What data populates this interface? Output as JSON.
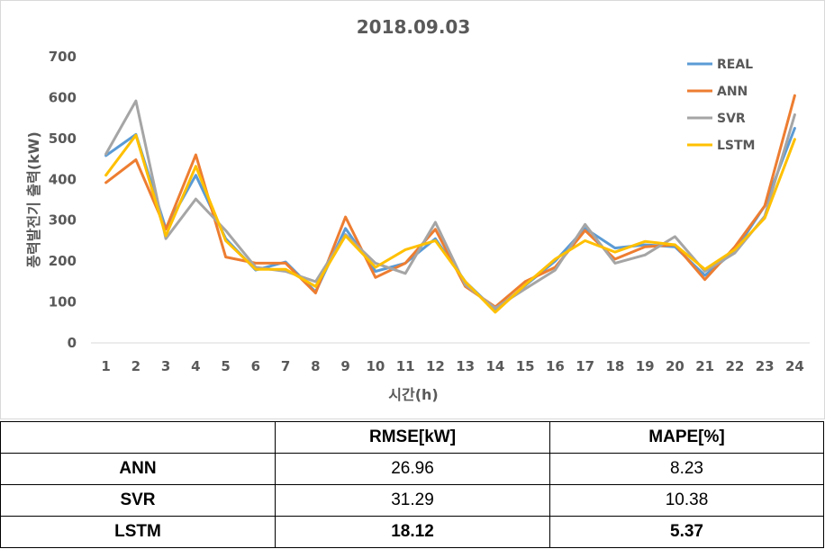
{
  "chart_data": {
    "type": "line",
    "title": "2018.09.03",
    "xlabel": "시간(h)",
    "ylabel": "풍력발전기 출력(kW)",
    "categories": [
      "1",
      "2",
      "3",
      "4",
      "5",
      "6",
      "7",
      "8",
      "9",
      "10",
      "11",
      "12",
      "13",
      "14",
      "15",
      "16",
      "17",
      "18",
      "19",
      "20",
      "21",
      "22",
      "23",
      "24"
    ],
    "ylim": [
      0,
      700
    ],
    "yticks": [
      0,
      100,
      200,
      300,
      400,
      500,
      600,
      700
    ],
    "grid": false,
    "legend": "top-right",
    "series": [
      {
        "name": "REAL",
        "color": "#5b9bd5",
        "values": [
          458,
          510,
          280,
          410,
          255,
          178,
          198,
          125,
          280,
          175,
          195,
          255,
          150,
          80,
          140,
          200,
          280,
          232,
          240,
          235,
          165,
          225,
          335,
          525
        ]
      },
      {
        "name": "ANN",
        "color": "#ed7d31",
        "values": [
          392,
          448,
          278,
          460,
          210,
          195,
          195,
          122,
          308,
          160,
          195,
          278,
          138,
          88,
          150,
          185,
          275,
          205,
          235,
          240,
          155,
          235,
          335,
          605
        ]
      },
      {
        "name": "SVR",
        "color": "#a5a5a5",
        "values": [
          462,
          592,
          255,
          352,
          275,
          185,
          175,
          150,
          265,
          195,
          170,
          295,
          142,
          85,
          132,
          178,
          290,
          195,
          215,
          260,
          175,
          220,
          310,
          558
        ]
      },
      {
        "name": "LSTM",
        "color": "#ffc000",
        "values": [
          410,
          508,
          262,
          432,
          250,
          180,
          180,
          138,
          262,
          185,
          228,
          250,
          150,
          75,
          142,
          205,
          250,
          222,
          248,
          240,
          180,
          228,
          305,
          498
        ]
      }
    ]
  },
  "table": {
    "headers": [
      "",
      "RMSE[kW]",
      "MAPE[%]"
    ],
    "rows": [
      {
        "model": "ANN",
        "rmse": "26.96",
        "mape": "8.23"
      },
      {
        "model": "SVR",
        "rmse": "31.29",
        "mape": "10.38"
      },
      {
        "model": "LSTM",
        "rmse": "18.12",
        "mape": "5.37"
      }
    ]
  }
}
